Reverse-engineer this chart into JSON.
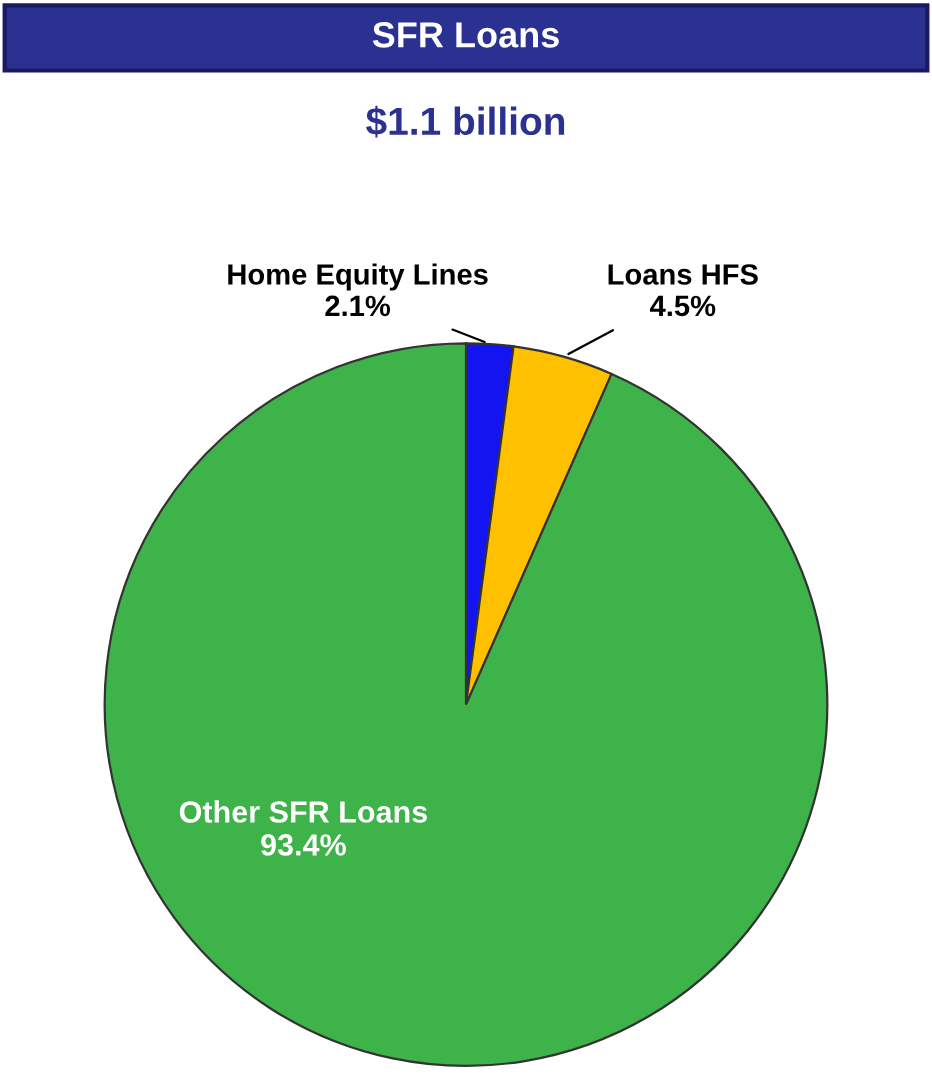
{
  "chart_data": {
    "type": "pie",
    "title": "SFR Loans",
    "subtitle": "$1.1 billion",
    "categories": [
      "Home Equity Lines",
      "Loans HFS",
      "Other SFR Loans"
    ],
    "values": [
      2.1,
      4.5,
      93.4
    ],
    "colors": [
      "#1414f0",
      "#ffc000",
      "#3db34a"
    ],
    "value_labels": [
      "2.1%",
      "4.5%",
      "93.4%"
    ],
    "legend": false
  }
}
